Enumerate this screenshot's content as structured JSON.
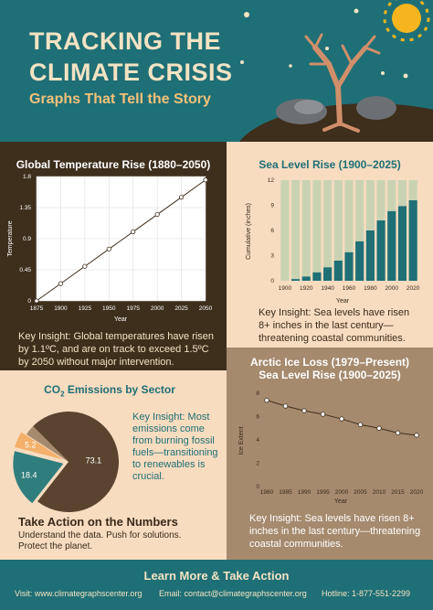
{
  "header": {
    "title_line1": "TRACKING THE",
    "title_line2": "CLIMATE CRISIS",
    "subtitle": "Graphs That Tell the Story"
  },
  "colors": {
    "teal": "#1f6f76",
    "dark_brown": "#3e2e1c",
    "cream": "#f7dcc0",
    "sage": "#c9d3b4",
    "taupe": "#a58a6e",
    "orange": "#f3b06a",
    "pie_brown": "#5a4430"
  },
  "temperature_panel": {
    "insight": "Key Insight: Global temperatures have risen by 1.1ºC, and are on track to exceed 1.5ºC by 2050 without major intervention."
  },
  "sea_panel": {
    "insight": "Key Insight: Sea levels have risen 8+ inches in the last century—threatening coastal communities."
  },
  "ice_panel": {
    "title_line2": "Sea Level Rise (1900–2025)",
    "insight": "Key Insight: Sea levels have risen 8+ inches in the last century—threatening coastal communities."
  },
  "co2_panel": {
    "title_prefix": "CO",
    "title_sub": "2",
    "title_suffix": " Emissions by Sector",
    "insight": "Key Insight: Most emissions come from burning fossil fuels—transitioning to renewables is crucial."
  },
  "action": {
    "title": "Take Action on the Numbers",
    "text": "Understand the data. Push for solutions. Protect the planet."
  },
  "footer": {
    "title": "Learn More & Take Action",
    "visit": "Visit: www.climategraphscenter.org",
    "email": "Email: contact@climategraphscenter.org",
    "hotline": "Hotline: 1-877-551-2299"
  },
  "chart_data": [
    {
      "type": "line",
      "title": "Global Temperature Rise (1880–2050)",
      "xlabel": "Year",
      "ylabel": "Temperature",
      "x": [
        1875,
        1900,
        1925,
        1950,
        1975,
        2000,
        2025,
        2050
      ],
      "y": [
        0,
        0.25,
        0.5,
        0.75,
        1.0,
        1.25,
        1.5,
        1.75
      ],
      "xlim": [
        1875,
        2050
      ],
      "ylim": [
        0,
        1.8
      ],
      "xticks": [
        "1875",
        "1900",
        "1925",
        "1950",
        "1975",
        "2000",
        "2025",
        "2050"
      ],
      "yticks": [
        "0",
        "0.45",
        "0.9",
        "1.35",
        "1.8"
      ],
      "grid": true
    },
    {
      "type": "bar",
      "title": "Sea Level Rise (1900–2025)",
      "xlabel": "Year",
      "ylabel": "Cumulative (inches)",
      "categories": [
        1900,
        1910,
        1920,
        1930,
        1940,
        1950,
        1960,
        1970,
        1980,
        1990,
        2000,
        2010,
        2020
      ],
      "values": [
        0,
        0.2,
        0.5,
        1.0,
        1.6,
        2.4,
        3.4,
        4.7,
        6.0,
        7.2,
        8.3,
        8.9,
        9.6
      ],
      "background_max": 12,
      "ylim": [
        0,
        12
      ],
      "xticks": [
        "1900",
        "1920",
        "1940",
        "1960",
        "1980",
        "2000",
        "2020"
      ],
      "yticks": [
        "0",
        "3",
        "6",
        "9",
        "12"
      ]
    },
    {
      "type": "line",
      "title": "Arctic Ice Loss (1979–Present)",
      "xlabel": "Year",
      "ylabel": "Ice Extent",
      "x": [
        1980,
        1985,
        1990,
        1995,
        2000,
        2005,
        2010,
        2015,
        2020
      ],
      "y": [
        7.4,
        6.9,
        6.5,
        6.2,
        5.8,
        5.3,
        5.0,
        4.6,
        4.4
      ],
      "xlim": [
        1980,
        2020
      ],
      "ylim": [
        0,
        8
      ],
      "xticks": [
        "1980",
        "1985",
        "1990",
        "1995",
        "2000",
        "2005",
        "2010",
        "2015",
        "2020"
      ],
      "yticks": [
        "0",
        "2",
        "4",
        "6",
        "8"
      ]
    },
    {
      "type": "pie",
      "title": "CO2 Emissions by Sector",
      "values": [
        73.1,
        18.4,
        5.2,
        3.3
      ],
      "labels": [
        "73.1",
        "18.4",
        "5.2",
        ""
      ],
      "colors": [
        "#5a4430",
        "#2f7e7d",
        "#f3b06a",
        "#a58a6e"
      ]
    }
  ]
}
